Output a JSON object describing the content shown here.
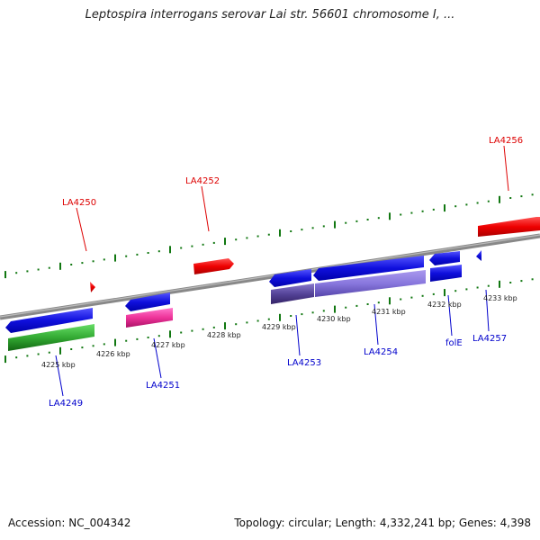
{
  "title": "Leptospira interrogans serovar Lai str. 56601 chromosome I, ...",
  "footer": {
    "accession": "Accession: NC_004342",
    "summary": "Topology: circular; Length: 4,332,241 bp; Genes: 4,398"
  },
  "scale": {
    "ticks": [
      "4225 kbp",
      "4226 kbp",
      "4227 kbp",
      "4228 kbp",
      "4229 kbp",
      "4230 kbp",
      "4231 kbp",
      "4232 kbp",
      "4233 kbp"
    ]
  },
  "genes_forward": [
    {
      "label": "LA4250",
      "color": "#dd0000"
    },
    {
      "label": "LA4252",
      "color": "#dd0000"
    },
    {
      "label": "LA4256",
      "color": "#dd0000"
    }
  ],
  "genes_reverse": [
    {
      "label": "LA4249",
      "color": "#0000cc"
    },
    {
      "label": "LA4251",
      "color": "#0000cc"
    },
    {
      "label": "LA4253",
      "color": "#0000cc"
    },
    {
      "label": "LA4254",
      "color": "#0000cc"
    },
    {
      "label": "folE",
      "color": "#0000cc"
    },
    {
      "label": "LA4257",
      "color": "#0000cc"
    }
  ],
  "colors": {
    "forward_gene": "#ee1111",
    "reverse_gene": "#1111dd",
    "cds_green": "#33aa33",
    "cds_pink": "#ee3399",
    "cds_purple": "#6655bb",
    "cds_lavender": "#8877dd",
    "backbone": "#888888",
    "tick": "#117711"
  }
}
